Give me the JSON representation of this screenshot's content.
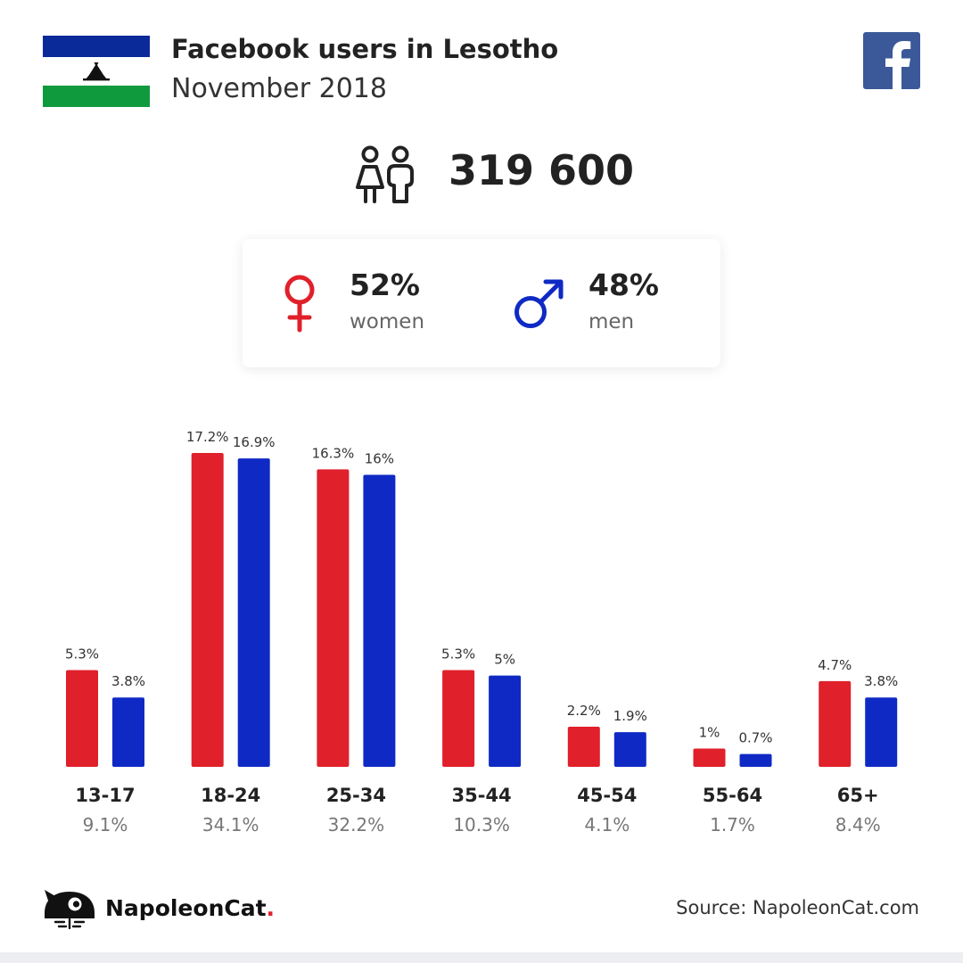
{
  "header": {
    "title": "Facebook users in Lesotho",
    "subtitle": "November 2018"
  },
  "total_users": "319 600",
  "gender": {
    "women": {
      "percent": "52%",
      "label": "women"
    },
    "men": {
      "percent": "48%",
      "label": "men"
    }
  },
  "colors": {
    "women": "#e0202a",
    "men": "#0f2ac4",
    "facebook": "#3b5998"
  },
  "chart_data": {
    "type": "bar",
    "categories": [
      "13-17",
      "18-24",
      "25-34",
      "35-44",
      "45-54",
      "55-64",
      "65+"
    ],
    "category_totals": [
      "9.1%",
      "34.1%",
      "32.2%",
      "10.3%",
      "4.1%",
      "1.7%",
      "8.4%"
    ],
    "series": [
      {
        "name": "women",
        "color": "#e0202a",
        "values": [
          5.3,
          17.2,
          16.3,
          5.3,
          2.2,
          1,
          4.7
        ],
        "labels": [
          "5.3%",
          "17.2%",
          "16.3%",
          "5.3%",
          "2.2%",
          "1%",
          "4.7%"
        ]
      },
      {
        "name": "men",
        "color": "#0f2ac4",
        "values": [
          3.8,
          16.9,
          16,
          5,
          1.9,
          0.7,
          3.8
        ],
        "labels": [
          "3.8%",
          "16.9%",
          "16%",
          "5%",
          "1.9%",
          "0.7%",
          "3.8%"
        ]
      }
    ],
    "ylim": [
      0,
      17.2
    ],
    "grid": false,
    "legend": "none"
  },
  "footer": {
    "brand": "NapoleonCat",
    "brand_dot": ".",
    "source": "Source: NapoleonCat.com"
  },
  "icons": {
    "flag": "lesotho-flag-icon",
    "facebook": "facebook-icon",
    "users": "people-icon",
    "female": "female-icon",
    "male": "male-icon",
    "logo": "napoleoncat-logo-icon"
  }
}
